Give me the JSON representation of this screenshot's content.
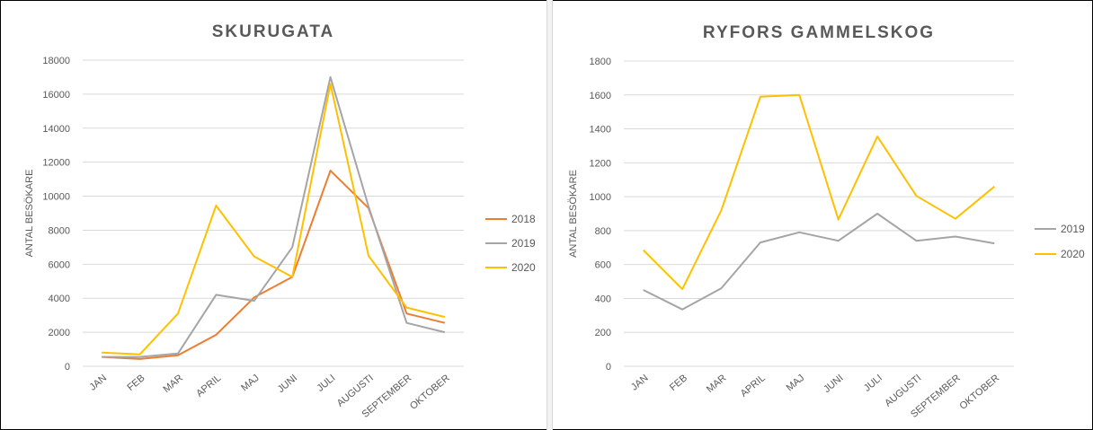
{
  "colors": {
    "2018": "#ed7d31",
    "2019": "#a5a5a5",
    "2020": "#ffc000"
  },
  "chart_data": [
    {
      "type": "line",
      "title": "SKURUGATA",
      "xlabel": "",
      "ylabel": "ANTAL BESÖKARE",
      "ylim": [
        0,
        18000
      ],
      "yticks": [
        "0",
        "2000",
        "4000",
        "6000",
        "8000",
        "10000",
        "12000",
        "14000",
        "16000",
        "18000"
      ],
      "categories": [
        "JAN",
        "FEB",
        "MAR",
        "APRIL",
        "MAJ",
        "JUNI",
        "JULI",
        "AUGUSTI",
        "SEPTEMBER",
        "OKTOBER"
      ],
      "legend_position": "right",
      "grid": true,
      "series": [
        {
          "name": "2018",
          "values": [
            550,
            430,
            650,
            1850,
            4050,
            5250,
            11500,
            9300,
            3100,
            2550
          ]
        },
        {
          "name": "2019",
          "values": [
            550,
            550,
            750,
            4200,
            3850,
            7000,
            17000,
            9400,
            2550,
            2000
          ]
        },
        {
          "name": "2020",
          "values": [
            800,
            700,
            3100,
            9450,
            6450,
            5250,
            16600,
            6500,
            3450,
            2900
          ]
        }
      ]
    },
    {
      "type": "line",
      "title": "RYFORS GAMMELSKOG",
      "xlabel": "",
      "ylabel": "ANTAL BESÖKARE",
      "ylim": [
        0,
        1800
      ],
      "yticks": [
        "0",
        "200",
        "400",
        "600",
        "800",
        "1000",
        "1200",
        "1400",
        "1600",
        "1800"
      ],
      "categories": [
        "JAN",
        "FEB",
        "MAR",
        "APRIL",
        "MAJ",
        "JUNI",
        "JULI",
        "AUGUSTI",
        "SEPTEMBER",
        "OKTOBER"
      ],
      "legend_position": "right",
      "grid": true,
      "series": [
        {
          "name": "2019",
          "values": [
            450,
            335,
            460,
            730,
            790,
            740,
            900,
            740,
            765,
            725
          ]
        },
        {
          "name": "2020",
          "values": [
            685,
            455,
            920,
            1590,
            1600,
            865,
            1355,
            1005,
            870,
            1060
          ]
        }
      ]
    }
  ]
}
